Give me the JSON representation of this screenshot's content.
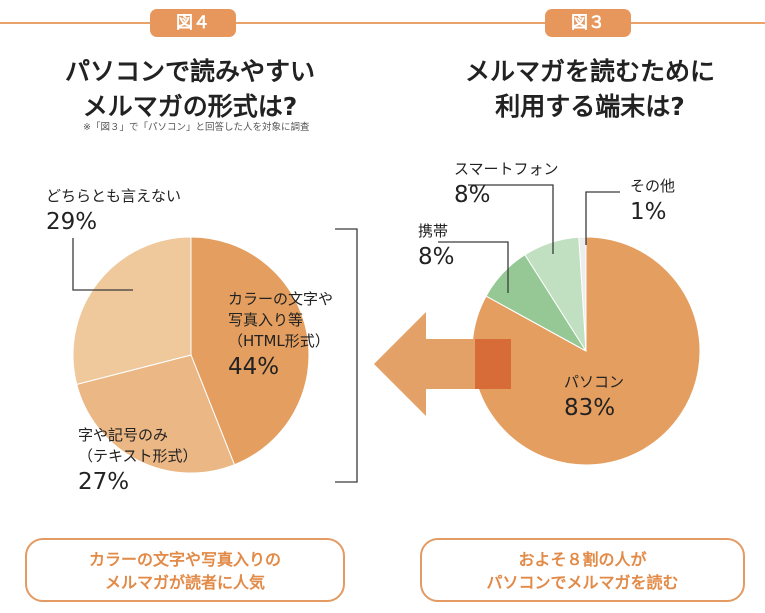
{
  "figures": {
    "left_tab": "図４",
    "right_tab": "図３"
  },
  "titles": {
    "left": [
      "パソコンで読みやすい",
      "メルマガの形式は?"
    ],
    "right": [
      "メルマガを読むために",
      "利用する端末は?"
    ]
  },
  "note": "※「図３」で「パソコン」と回答した人を対象に調査",
  "summaries": {
    "left": [
      "カラーの文字や写真入りの",
      "メルマガが読者に人気"
    ],
    "right": [
      "およそ８割の人が",
      "パソコンでメルマガを読む"
    ]
  },
  "colors": {
    "accent": "#e7965c",
    "pc_orange": "#e49e5f",
    "text_only": "#ebb784",
    "unsure": "#efc89c",
    "mobile_green": "#95c895",
    "smartphone_green": "#c1dfc1",
    "other": "#ededed",
    "arrow": "#e3a167",
    "arrow_overlap": "#d86c38"
  },
  "chart_data": [
    {
      "type": "pie",
      "title": "パソコンで読みやすいメルマガの形式は?",
      "slices": [
        {
          "label": "カラーの文字や写真入り等（HTML形式）",
          "label_lines": [
            "カラーの文字や",
            "写真入り等",
            "（HTML形式）"
          ],
          "value": 44,
          "pct": "44%"
        },
        {
          "label": "字や記号のみ（テキスト形式）",
          "label_lines": [
            "字や記号のみ",
            "（テキスト形式）"
          ],
          "value": 27,
          "pct": "27%"
        },
        {
          "label": "どちらとも言えない",
          "label_lines": [
            "どちらとも言えない"
          ],
          "value": 29,
          "pct": "29%"
        }
      ]
    },
    {
      "type": "pie",
      "title": "メルマガを読むために利用する端末は?",
      "slices": [
        {
          "label": "パソコン",
          "label_lines": [
            "パソコン"
          ],
          "value": 83,
          "pct": "83%"
        },
        {
          "label": "携帯",
          "label_lines": [
            "携帯"
          ],
          "value": 8,
          "pct": "8%"
        },
        {
          "label": "スマートフォン",
          "label_lines": [
            "スマートフォン"
          ],
          "value": 8,
          "pct": "8%"
        },
        {
          "label": "その他",
          "label_lines": [
            "その他"
          ],
          "value": 1,
          "pct": "1%"
        }
      ]
    }
  ]
}
